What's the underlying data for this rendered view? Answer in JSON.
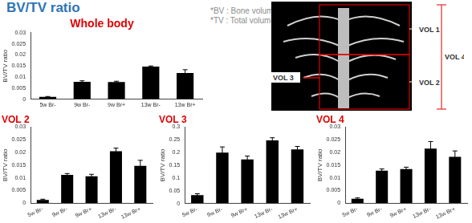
{
  "title": "BV/TV ratio",
  "notes": [
    "*BV : Bone volume",
    "*TV : Total volume"
  ],
  "image": {
    "labels": [
      "VOL 1",
      "VOL 2",
      "VOL 3",
      "VOL 4"
    ]
  },
  "chart_data": [
    {
      "type": "bar",
      "title": "Whole body",
      "y_label": "BV/TV ratio",
      "categories": [
        "5w Br-",
        "9w Br-",
        "9w Br+",
        "13w Br-",
        "13w Br+"
      ],
      "values": [
        0.001,
        0.0078,
        0.0077,
        0.0147,
        0.0118
      ],
      "errors": [
        0.0002,
        0.0005,
        0.0004,
        0.0003,
        0.0015
      ],
      "color": "#000000",
      "ylim": [
        0,
        0.03
      ],
      "yticks": [
        0,
        0.005,
        0.01,
        0.015,
        0.02,
        0.025,
        0.03
      ],
      "grid": false
    },
    {
      "type": "bar",
      "title": "VOL 2",
      "y_label": "BV/TV ratio",
      "categories": [
        "5w Br-",
        "9w Br-",
        "9w Br+",
        "13w Br-",
        "13w Br+"
      ],
      "values": [
        0.0013,
        0.0112,
        0.0106,
        0.0205,
        0.0147
      ],
      "errors": [
        0.0003,
        0.0005,
        0.0008,
        0.0012,
        0.0022
      ],
      "color": "#000000",
      "ylim": [
        0,
        0.03
      ],
      "yticks": [
        0,
        0.005,
        0.01,
        0.015,
        0.02,
        0.025,
        0.03
      ],
      "grid": false
    },
    {
      "type": "bar",
      "title": "VOL 3",
      "y_label": "BV/TV ratio",
      "categories": [
        "5w Br-",
        "9w Br-",
        "9w Br+",
        "13w Br-",
        "13w Br+"
      ],
      "values": [
        0.033,
        0.2,
        0.173,
        0.248,
        0.212
      ],
      "errors": [
        0.005,
        0.022,
        0.013,
        0.01,
        0.012
      ],
      "color": "#000000",
      "ylim": [
        0,
        0.3
      ],
      "yticks": [
        0,
        0.05,
        0.1,
        0.15,
        0.2,
        0.25,
        0.3
      ],
      "grid": false
    },
    {
      "type": "bar",
      "title": "VOL 4",
      "y_label": "BV/TV ratio",
      "categories": [
        "5w Br-",
        "9w Br-",
        "9w Br+",
        "13w Br-",
        "13w Br+"
      ],
      "values": [
        0.0018,
        0.0128,
        0.0135,
        0.0215,
        0.0183
      ],
      "errors": [
        0.0003,
        0.0007,
        0.0007,
        0.0028,
        0.0023
      ],
      "color": "#000000",
      "ylim": [
        0,
        0.03
      ],
      "yticks": [
        0,
        0.005,
        0.01,
        0.015,
        0.02,
        0.025,
        0.03
      ],
      "grid": false
    }
  ]
}
